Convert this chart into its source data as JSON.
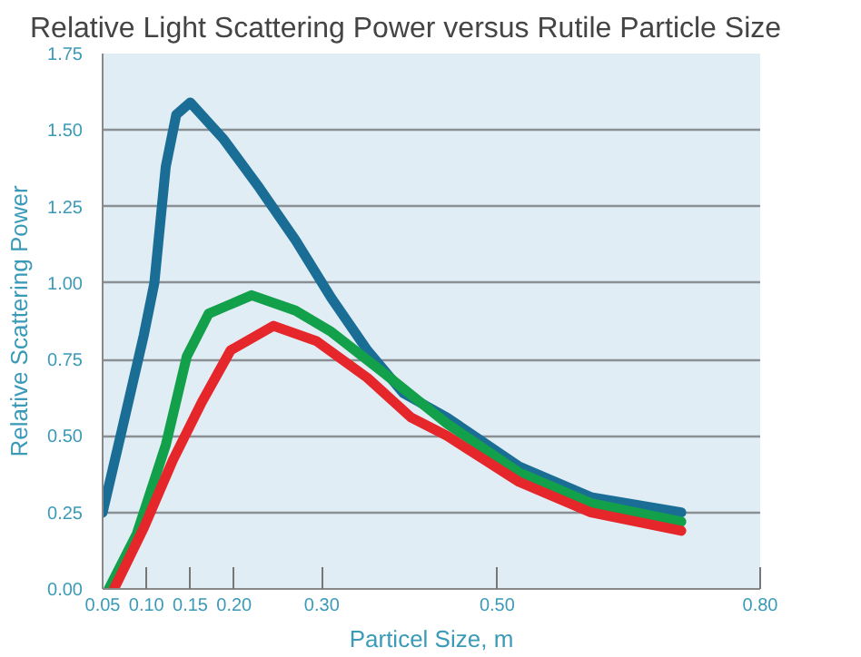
{
  "chart_data": {
    "type": "line",
    "title": "Relative Light Scattering Power versus Rutile Particle Size",
    "xlabel": "Particel Size, m",
    "ylabel": "Relative Scattering Power",
    "xlim": [
      0.05,
      0.8
    ],
    "ylim": [
      0,
      1.75
    ],
    "xticks": [
      {
        "value": 0.05,
        "label": "0.05"
      },
      {
        "value": 0.1,
        "label": "0.10"
      },
      {
        "value": 0.15,
        "label": "0.15"
      },
      {
        "value": 0.2,
        "label": "0.20"
      },
      {
        "value": 0.3,
        "label": "0.30"
      },
      {
        "value": 0.5,
        "label": "0.50"
      },
      {
        "value": 0.8,
        "label": "0.80"
      }
    ],
    "yticks": [
      {
        "value": 0,
        "label": "0.00"
      },
      {
        "value": 0.25,
        "label": "0.25"
      },
      {
        "value": 0.5,
        "label": "0.50"
      },
      {
        "value": 0.75,
        "label": "0.75"
      },
      {
        "value": 1,
        "label": "1.00"
      },
      {
        "value": 1.25,
        "label": "1.25"
      },
      {
        "value": 1.5,
        "label": "1.50"
      },
      {
        "value": 1.75,
        "label": "1.75"
      }
    ],
    "grid": "y",
    "marker": "none",
    "line_style": "solid",
    "series": [
      {
        "color": "#1a6e96",
        "x": [
          0.05,
          0.072,
          0.097,
          0.109,
          0.122,
          0.134,
          0.15,
          0.188,
          0.229,
          0.27,
          0.311,
          0.352,
          0.393,
          0.443,
          0.525,
          0.607,
          0.71
        ],
        "values": [
          0.25,
          0.52,
          0.83,
          1.0,
          1.38,
          1.55,
          1.59,
          1.47,
          1.31,
          1.14,
          0.95,
          0.78,
          0.64,
          0.56,
          0.4,
          0.3,
          0.25
        ]
      },
      {
        "color": "#13a04a",
        "x": [
          0.057,
          0.089,
          0.122,
          0.146,
          0.171,
          0.22,
          0.27,
          0.311,
          0.369,
          0.443,
          0.525,
          0.607,
          0.71
        ],
        "values": [
          0,
          0.18,
          0.47,
          0.76,
          0.9,
          0.96,
          0.91,
          0.84,
          0.71,
          0.54,
          0.38,
          0.28,
          0.22
        ]
      },
      {
        "color": "#e5262b",
        "x": [
          0.063,
          0.097,
          0.13,
          0.163,
          0.196,
          0.245,
          0.294,
          0.352,
          0.402,
          0.443,
          0.525,
          0.607,
          0.71
        ],
        "values": [
          0,
          0.2,
          0.42,
          0.61,
          0.78,
          0.86,
          0.81,
          0.69,
          0.56,
          0.5,
          0.35,
          0.25,
          0.19
        ]
      }
    ]
  }
}
